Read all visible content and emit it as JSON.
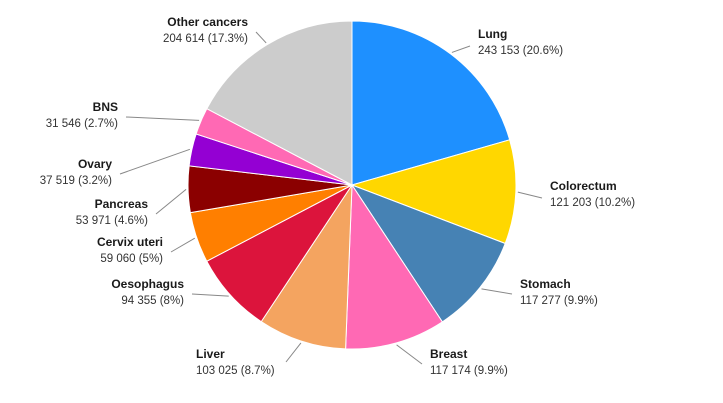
{
  "chart_data": {
    "type": "pie",
    "title": "",
    "legend": "none",
    "slices": [
      {
        "name": "Lung",
        "value": 243153,
        "value_label": "243 153",
        "percent_label": "20.6%",
        "color": "#1E90FF"
      },
      {
        "name": "Colorectum",
        "value": 121203,
        "value_label": "121 203",
        "percent_label": "10.2%",
        "color": "#FFD700"
      },
      {
        "name": "Stomach",
        "value": 117277,
        "value_label": "117 277",
        "percent_label": "9.9%",
        "color": "#4682B4"
      },
      {
        "name": "Breast",
        "value": 117174,
        "value_label": "117 174",
        "percent_label": "9.9%",
        "color": "#FF69B4"
      },
      {
        "name": "Liver",
        "value": 103025,
        "value_label": "103 025",
        "percent_label": "8.7%",
        "color": "#F4A460"
      },
      {
        "name": "Oesophagus",
        "value": 94355,
        "value_label": "94 355",
        "percent_label": "8%",
        "color": "#DC143C"
      },
      {
        "name": "Cervix uteri",
        "value": 59060,
        "value_label": "59 060",
        "percent_label": "5%",
        "color": "#FF7F00"
      },
      {
        "name": "Pancreas",
        "value": 53971,
        "value_label": "53 971",
        "percent_label": "4.6%",
        "color": "#8B0000"
      },
      {
        "name": "Ovary",
        "value": 37519,
        "value_label": "37 519",
        "percent_label": "3.2%",
        "color": "#9400D3"
      },
      {
        "name": "BNS",
        "value": 31546,
        "value_label": "31 546",
        "percent_label": "2.7%",
        "color": "#FF69B4"
      },
      {
        "name": "Other cancers",
        "value": 204614,
        "value_label": "204 614",
        "percent_label": "17.3%",
        "color": "#CCCCCC"
      }
    ]
  }
}
